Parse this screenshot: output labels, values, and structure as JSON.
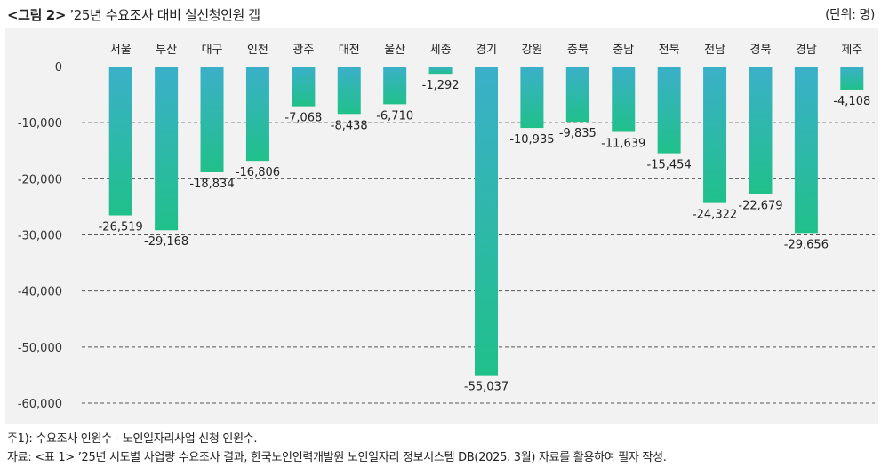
{
  "header": {
    "fig_label": "<그림 2>",
    "title": "’25년 수요조사 대비 실신청인원 갭",
    "unit": "(단위: 명)"
  },
  "notes": {
    "note1": "주1): 수요조사 인원수 - 노인일자리사업 신청 인원수.",
    "source": "자료: <표 1> ’25년 시도별 사업량 수요조사 결과, 한국노인인력개발원 노인일자리 정보시스템 DB(2025. 3월) 자료를 활용하여 필자 작성."
  },
  "colors": {
    "bar_top": "#3BB0C9",
    "bar_bottom": "#20C08A",
    "panel_bg": "#f2f2f2"
  },
  "chart_data": {
    "type": "bar",
    "title": "’25년 수요조사 대비 실신청인원 갭",
    "xlabel": "",
    "ylabel": "",
    "unit": "명",
    "ylim": [
      -60000,
      0
    ],
    "yticks": [
      0,
      -10000,
      -20000,
      -30000,
      -40000,
      -50000,
      -60000
    ],
    "ytick_labels": [
      "0",
      "-10,000",
      "-20,000",
      "-30,000",
      "-40,000",
      "-50,000",
      "-60,000"
    ],
    "grid": "horizontal dashed",
    "categories": [
      "서울",
      "부산",
      "대구",
      "인천",
      "광주",
      "대전",
      "울산",
      "세종",
      "경기",
      "강원",
      "충북",
      "충남",
      "전북",
      "전남",
      "경북",
      "경남",
      "제주"
    ],
    "values": [
      -26519,
      -29168,
      -18834,
      -16806,
      -7068,
      -8438,
      -6710,
      -1292,
      -55037,
      -10935,
      -9835,
      -11639,
      -15454,
      -24322,
      -22679,
      -29656,
      -4108
    ],
    "value_labels": [
      "-26,519",
      "-29,168",
      "-18,834",
      "-16,806",
      "-7,068",
      "-8,438",
      "-6,710",
      "-1,292",
      "-55,037",
      "-10,935",
      "-9,835",
      "-11,639",
      "-15,454",
      "-24,322",
      "-22,679",
      "-29,656",
      "-4,108"
    ]
  }
}
